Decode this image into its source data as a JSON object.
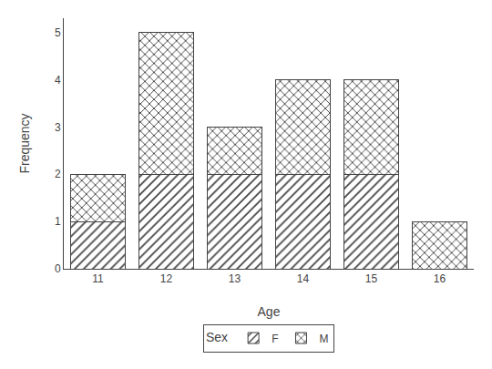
{
  "chart_data": {
    "type": "bar",
    "stacked": true,
    "x_label": "Age",
    "y_label": "Frequency",
    "categories": [
      "11",
      "12",
      "13",
      "14",
      "15",
      "16"
    ],
    "series": [
      {
        "name": "F",
        "color": "#ffffff",
        "values": [
          1,
          2,
          2,
          2,
          2,
          0
        ]
      },
      {
        "name": "M",
        "color": "#b0b0b0",
        "values": [
          1,
          3,
          1,
          2,
          2,
          1
        ]
      }
    ],
    "legend_title": "Sex",
    "legend": "bottom",
    "ylim": [
      0,
      5.3
    ],
    "yticks": [
      0,
      1,
      2,
      3,
      4,
      5
    ],
    "grid": false
  }
}
